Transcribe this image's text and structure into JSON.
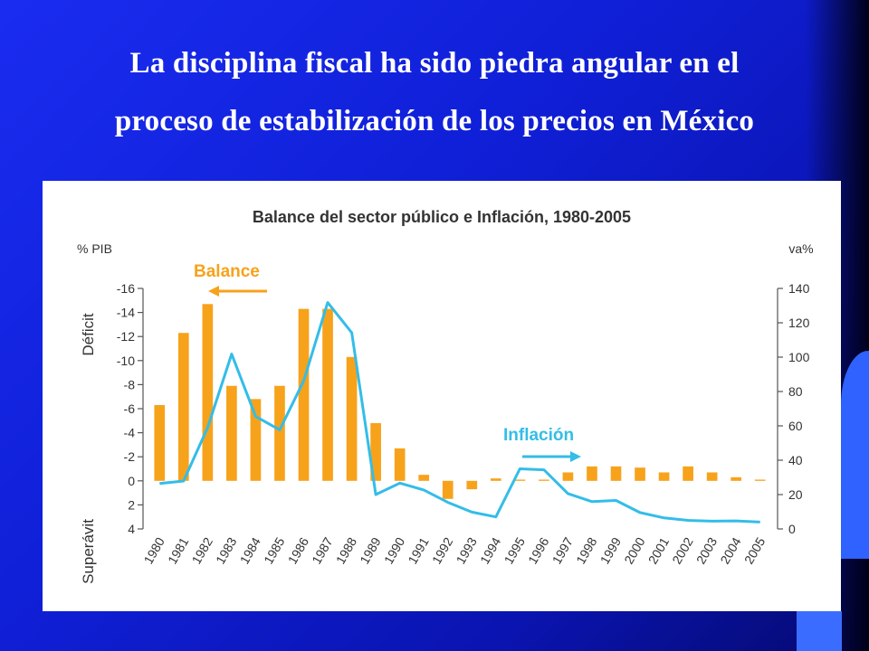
{
  "slide": {
    "title_line1": "La disciplina fiscal ha sido piedra angular en el",
    "title_line2": "proceso de estabilización de los precios en México"
  },
  "colors": {
    "balance": "#f7a21b",
    "inflation": "#33bde8",
    "background": "#1525e6"
  },
  "chart_data": {
    "type": "bar",
    "title": "Balance del sector público e Inflación, 1980-2005",
    "categories": [
      "1980",
      "1981",
      "1982",
      "1983",
      "1984",
      "1985",
      "1986",
      "1987",
      "1988",
      "1989",
      "1990",
      "1991",
      "1992",
      "1993",
      "1994",
      "1995",
      "1996",
      "1997",
      "1998",
      "1999",
      "2000",
      "2001",
      "2002",
      "2003",
      "2004",
      "2005"
    ],
    "left_axis": {
      "unit": "% PIB",
      "range": [
        -16,
        4
      ],
      "reversed": true,
      "ticks": [
        "-16",
        "-14",
        "-12",
        "-10",
        "-8",
        "-6",
        "-4",
        "-2",
        "0",
        "2",
        "4"
      ],
      "label_top": "Déficit",
      "label_bottom": "Superávit"
    },
    "right_axis": {
      "unit": "va%",
      "range": [
        0,
        140
      ],
      "ticks": [
        "0",
        "20",
        "40",
        "60",
        "80",
        "100",
        "120",
        "140"
      ]
    },
    "series": [
      {
        "name": "Balance",
        "type": "bar",
        "axis": "left",
        "values": [
          -6.3,
          -12.3,
          -14.7,
          -7.9,
          -6.8,
          -7.9,
          -14.3,
          -14.3,
          -10.3,
          -4.8,
          -2.7,
          -0.5,
          1.5,
          0.7,
          -0.2,
          -0.1,
          -0.1,
          -0.7,
          -1.2,
          -1.2,
          -1.1,
          -0.7,
          -1.2,
          -0.7,
          -0.3,
          -0.1
        ]
      },
      {
        "name": "Inflación",
        "type": "line",
        "axis": "right",
        "values": [
          26.4,
          27.9,
          58.9,
          101.8,
          65.5,
          57.7,
          86.2,
          131.8,
          114.2,
          20.0,
          26.7,
          22.7,
          15.5,
          9.8,
          7.0,
          35.0,
          34.4,
          20.6,
          15.9,
          16.6,
          9.5,
          6.4,
          5.0,
          4.5,
          4.7,
          4.0
        ]
      }
    ]
  }
}
